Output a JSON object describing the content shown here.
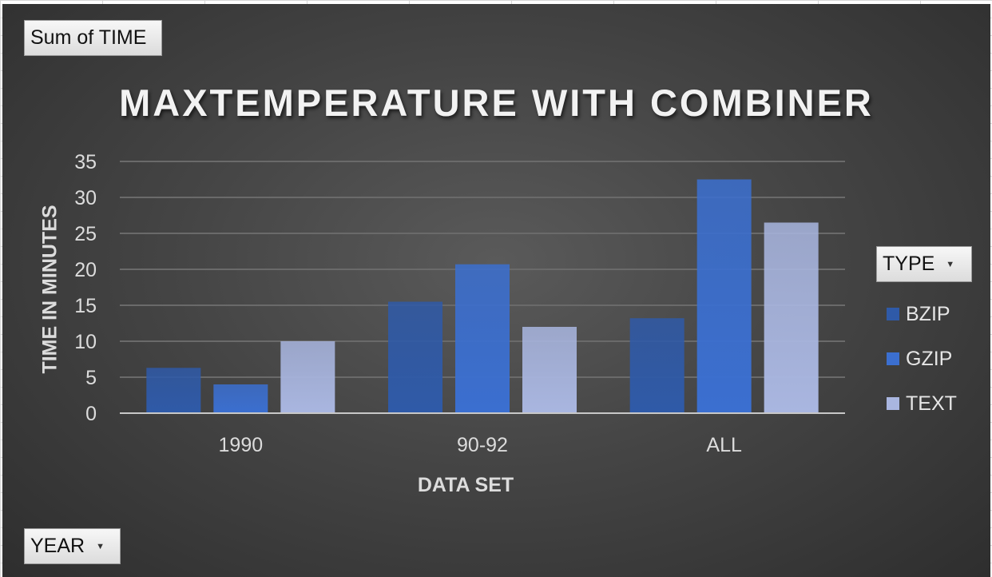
{
  "pivot": {
    "sum_label": "Sum of TIME",
    "type_label": "TYPE",
    "year_label": "YEAR"
  },
  "chart_data": {
    "type": "bar",
    "title": "MAXTEMPERATURE WITH COMBINER",
    "xlabel": "DATA SET",
    "ylabel": "TIME IN MINUTES",
    "categories": [
      "1990",
      "90-92",
      "ALL"
    ],
    "series": [
      {
        "name": "BZIP",
        "values": [
          6.3,
          15.5,
          13.2
        ],
        "color": "#2f5aa8"
      },
      {
        "name": "GZIP",
        "values": [
          4.0,
          20.7,
          32.5
        ],
        "color": "#3b6fd0"
      },
      {
        "name": "TEXT",
        "values": [
          10.0,
          12.0,
          26.5
        ],
        "color": "#a9b6e0"
      }
    ],
    "ylim": [
      0,
      35
    ],
    "yticks": [
      0,
      5,
      10,
      15,
      20,
      25,
      30,
      35
    ],
    "grid": true,
    "legend_position": "right"
  }
}
